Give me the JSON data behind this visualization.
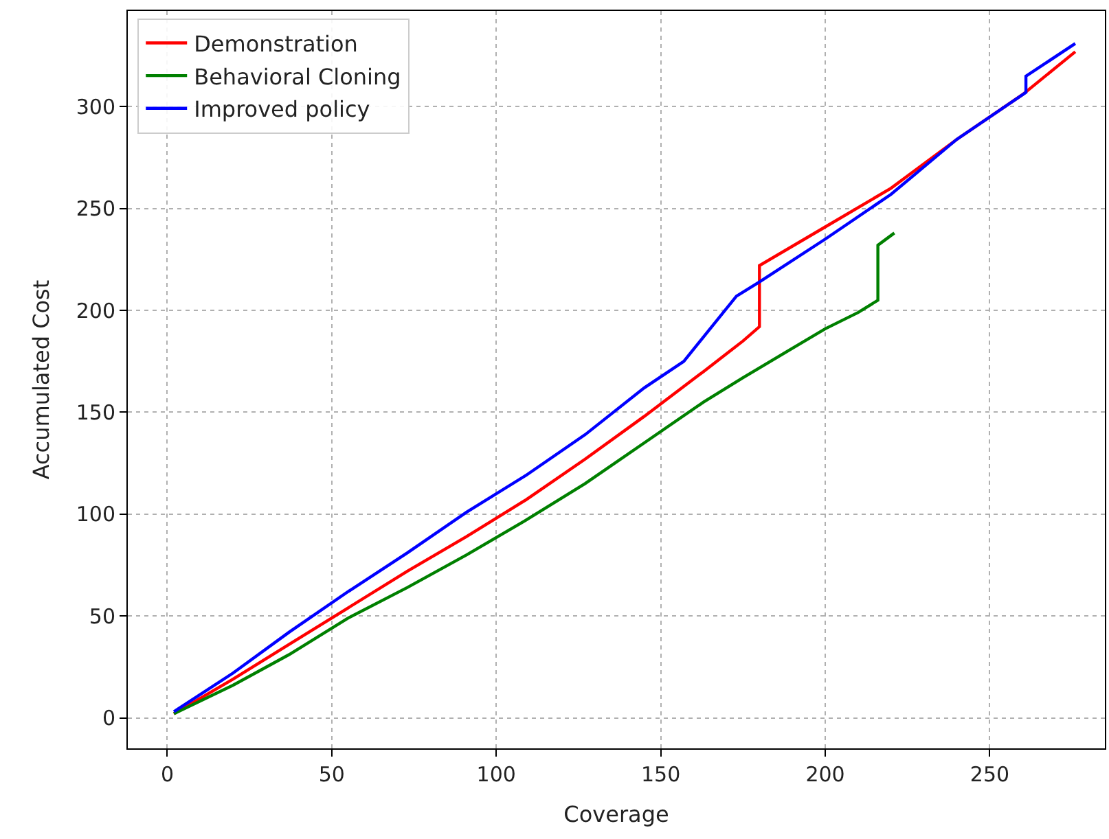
{
  "chart_data": {
    "type": "line",
    "xlabel": "Coverage",
    "ylabel": "Accumulated Cost",
    "xlim": [
      -12,
      285
    ],
    "ylim": [
      -15,
      347
    ],
    "xticks": [
      0,
      50,
      100,
      150,
      200,
      250
    ],
    "yticks": [
      0,
      50,
      100,
      150,
      200,
      250,
      300
    ],
    "grid": true,
    "legend": "top left",
    "line_style": "solid",
    "marker": "none",
    "series": [
      {
        "name": "Demonstration",
        "color": "#ff0000",
        "x": [
          2,
          20,
          37,
          55,
          73,
          91,
          109,
          127,
          145,
          163,
          175,
          180,
          180,
          200,
          220,
          240,
          260,
          276
        ],
        "values": [
          2,
          19,
          36,
          54,
          72,
          89,
          107,
          127,
          148,
          170,
          185,
          192,
          222,
          241,
          260,
          284,
          306,
          327
        ]
      },
      {
        "name": "Behavioral Cloning",
        "color": "#008000",
        "x": [
          2,
          20,
          37,
          55,
          73,
          91,
          109,
          127,
          145,
          163,
          175,
          200,
          210,
          216,
          216,
          221
        ],
        "values": [
          2,
          16,
          31,
          49,
          64,
          80,
          97,
          115,
          135,
          155,
          167,
          191,
          199,
          205,
          232,
          238
        ]
      },
      {
        "name": "Improved policy",
        "color": "#0000ff",
        "x": [
          2,
          20,
          37,
          55,
          73,
          91,
          109,
          127,
          145,
          157,
          173,
          180,
          200,
          220,
          240,
          261,
          261,
          276
        ],
        "values": [
          3,
          22,
          42,
          62,
          81,
          101,
          119,
          139,
          162,
          175,
          207,
          214,
          235,
          257,
          284,
          307,
          315,
          331
        ]
      }
    ]
  }
}
